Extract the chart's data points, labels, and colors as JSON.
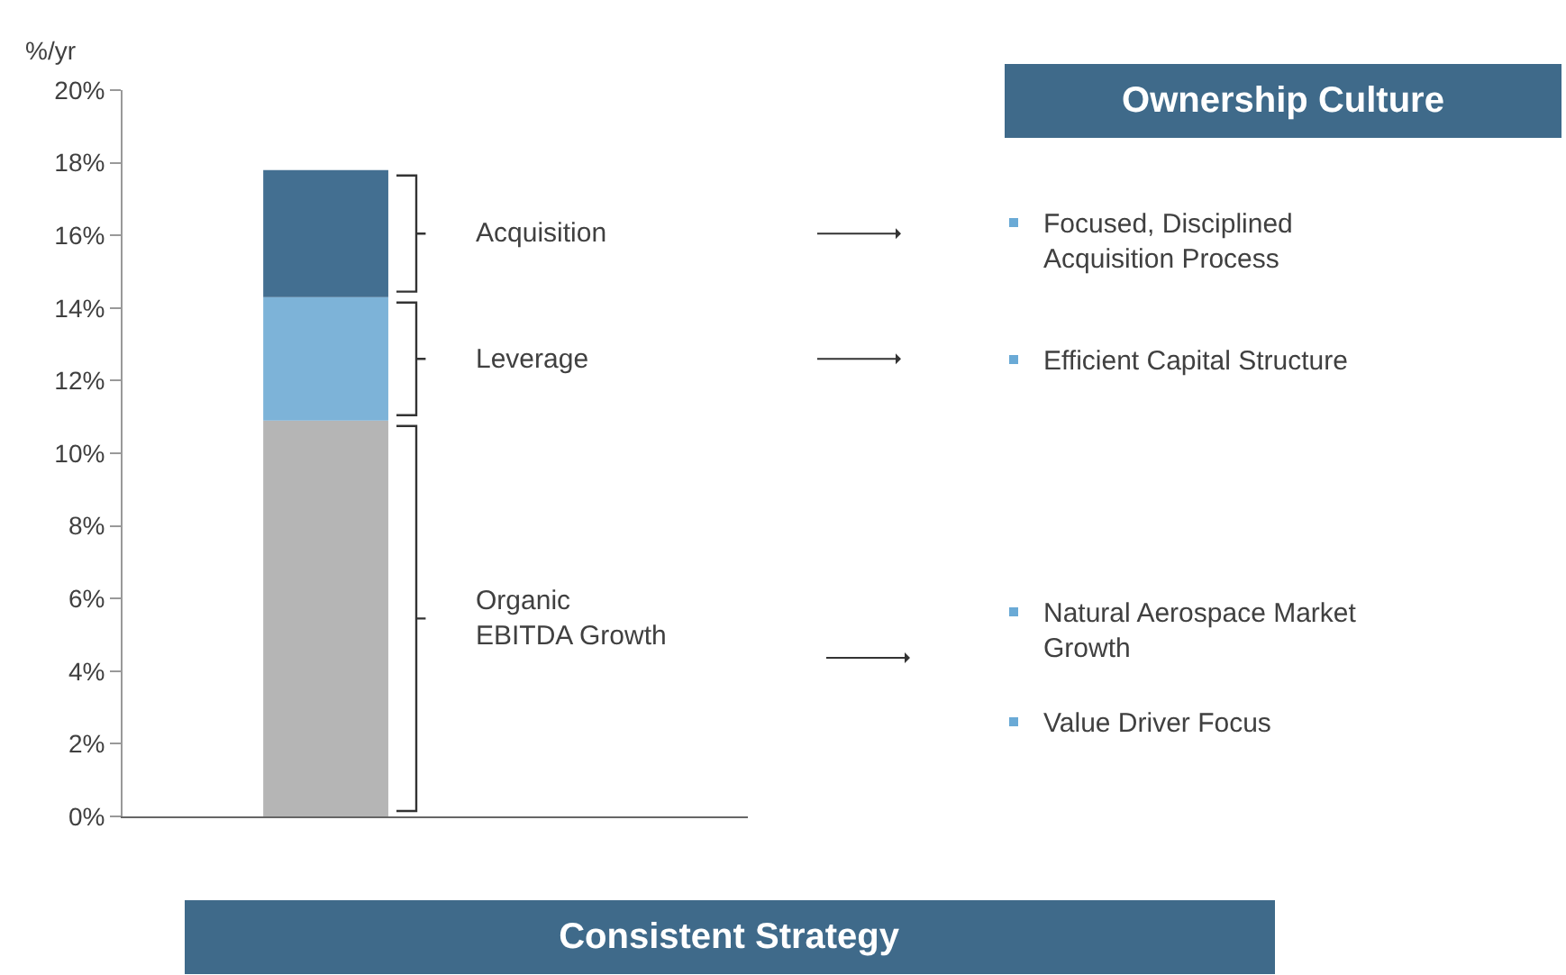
{
  "chart_data": {
    "type": "bar",
    "stacked": true,
    "ylabel": "%/yr",
    "categories": [
      null
    ],
    "series": [
      {
        "name": "Organic EBITDA Growth",
        "color": "#b5b5b5",
        "values": [
          10.9
        ]
      },
      {
        "name": "Leverage",
        "color": "#7db3d8",
        "values": [
          3.4
        ]
      },
      {
        "name": "Acquisition",
        "color": "#436f91",
        "values": [
          3.5
        ]
      }
    ],
    "ylim": [
      0,
      20
    ],
    "yticks": [
      {
        "value": 0,
        "label": "0%"
      },
      {
        "value": 2,
        "label": "2%"
      },
      {
        "value": 4,
        "label": "4%"
      },
      {
        "value": 6,
        "label": "6%"
      },
      {
        "value": 8,
        "label": "8%"
      },
      {
        "value": 10,
        "label": "10%"
      },
      {
        "value": 12,
        "label": "12%"
      },
      {
        "value": 14,
        "label": "14%"
      },
      {
        "value": 16,
        "label": "16%"
      },
      {
        "value": 18,
        "label": "18%"
      },
      {
        "value": 20,
        "label": "20%"
      }
    ],
    "legend": false,
    "annotations": [
      "Ownership Culture",
      "Focused, Disciplined Acquisition Process",
      "Efficient Capital Structure",
      "Natural Aerospace Market Growth",
      "Value Driver Focus",
      "Consistent Strategy"
    ]
  }
}
